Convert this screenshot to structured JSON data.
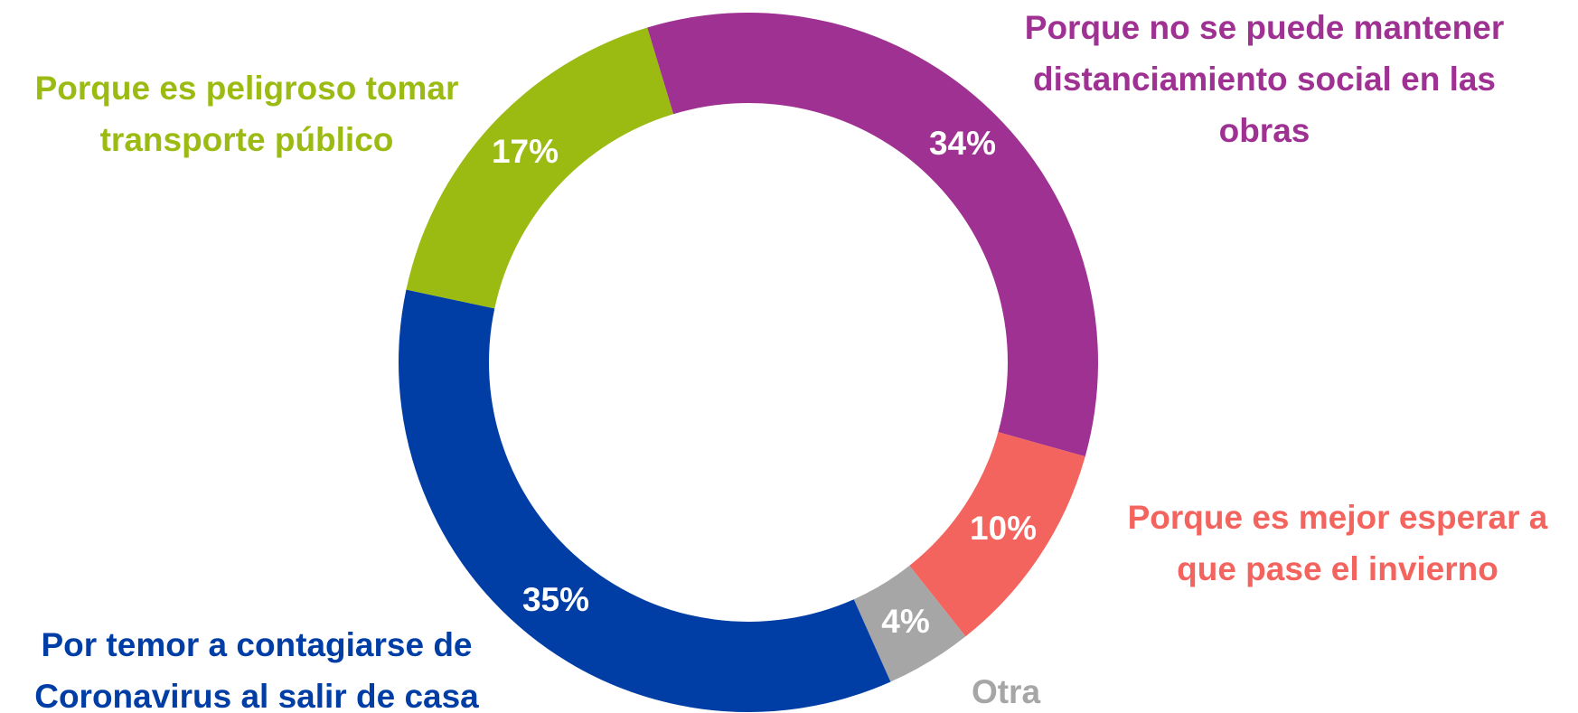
{
  "chart_data": {
    "type": "donut",
    "categories": [
      [
        "Porque no se puede mantener",
        "distanciamiento social en las",
        "obras"
      ],
      [
        "Porque es mejor esperar a",
        "que pase el invierno"
      ],
      [
        "Otra"
      ],
      [
        "Por temor a contagiarse de",
        "Coronavirus al salir de casa"
      ],
      [
        "Porque es peligroso tomar",
        "transporte público"
      ]
    ],
    "values": [
      34,
      10,
      4,
      35,
      17
    ],
    "value_labels": [
      "34%",
      "10%",
      "4%",
      "35%",
      "17%"
    ],
    "colors": [
      "#9e3192",
      "#f4645e",
      "#a6a6a6",
      "#003ea5",
      "#9bbb13"
    ]
  }
}
